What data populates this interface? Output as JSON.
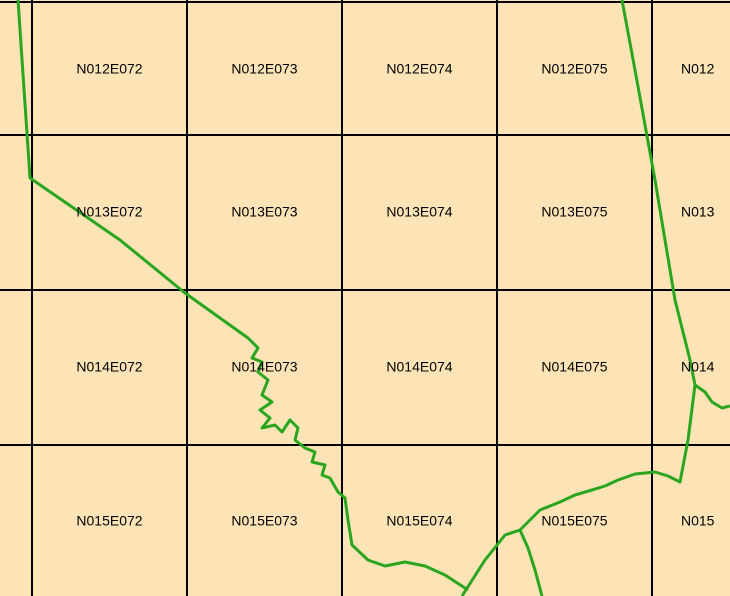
{
  "tiles": {
    "rows": [
      [
        "N012E072",
        "N012E073",
        "N012E074",
        "N012E075",
        "N012"
      ],
      [
        "N013E072",
        "N013E073",
        "N013E074",
        "N013E075",
        "N013"
      ],
      [
        "N014E072",
        "N014E073",
        "N014E074",
        "N014E075",
        "N014"
      ],
      [
        "N015E072",
        "N015E073",
        "N015E074",
        "N015E075",
        "N015"
      ]
    ]
  }
}
